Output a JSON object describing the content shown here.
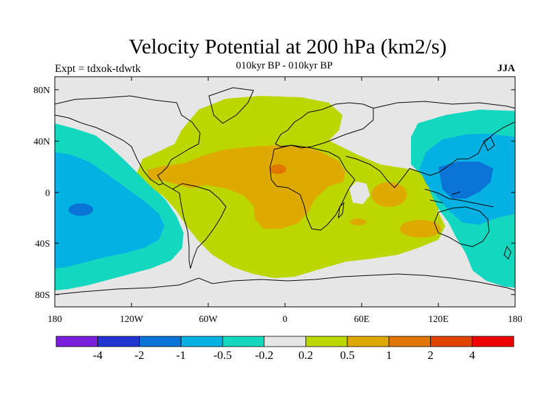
{
  "title": "Velocity Potential at 200 hPa (km2/s)",
  "subtitle": "010kyr BP - 010kyr BP",
  "left_label": "Expt = tdxok-tdwtk",
  "right_label": "JJA",
  "lat_ticks": [
    "80N",
    "40N",
    "0",
    "40S",
    "80S"
  ],
  "lon_ticks": [
    "180",
    "120W",
    "60W",
    "0",
    "60E",
    "120E",
    "180"
  ],
  "colorbar": {
    "colors": [
      "#7a1fdc",
      "#2233d4",
      "#0a74d6",
      "#05b0e2",
      "#14d7c0",
      "#e6e6e6",
      "#bcd600",
      "#deaa00",
      "#e07600",
      "#e04400",
      "#ee0000"
    ],
    "labels": [
      "-4",
      "-2",
      "-1",
      "-0.5",
      "-0.2",
      "0.2",
      "0.5",
      "1",
      "2",
      "4"
    ]
  }
}
